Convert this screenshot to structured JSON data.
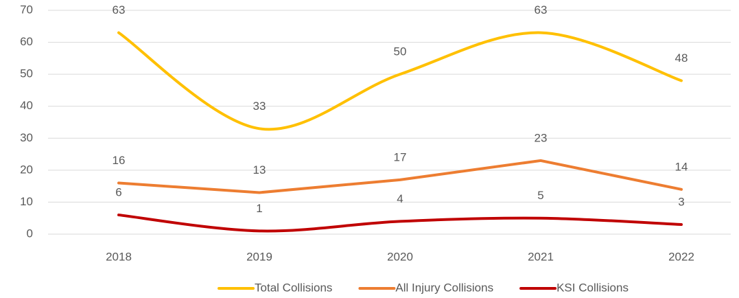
{
  "chart_data": {
    "type": "line",
    "categories": [
      "2018",
      "2019",
      "2020",
      "2021",
      "2022"
    ],
    "series": [
      {
        "name": "Total Collisions",
        "color": "#ffc000",
        "smooth": true,
        "values": [
          63,
          33,
          50,
          63,
          48
        ]
      },
      {
        "name": "All Injury Collisions",
        "color": "#ed7d31",
        "smooth": false,
        "values": [
          16,
          13,
          17,
          23,
          14
        ]
      },
      {
        "name": "KSI Collisions",
        "color": "#c00000",
        "smooth": true,
        "values": [
          6,
          1,
          4,
          5,
          3
        ]
      }
    ],
    "ylim": [
      0,
      70
    ],
    "yticks": [
      0,
      10,
      20,
      30,
      40,
      50,
      60,
      70
    ],
    "grid": true,
    "legend": "bottom"
  }
}
